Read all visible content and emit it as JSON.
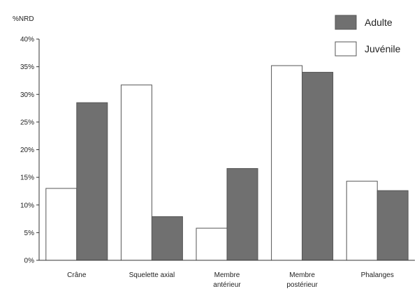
{
  "chart_data": {
    "type": "bar",
    "ylabel": "%NRD",
    "ylim": [
      0,
      40
    ],
    "yticks": [
      "0%",
      "5%",
      "10%",
      "15%",
      "20%",
      "25%",
      "30%",
      "35%",
      "40%"
    ],
    "categories": [
      [
        "Crâne"
      ],
      [
        "Squelette axial"
      ],
      [
        "Membre",
        "antérieur"
      ],
      [
        "Membre",
        "postérieur"
      ],
      [
        "Phalanges"
      ]
    ],
    "series": [
      {
        "name": "Juvénile",
        "color": "#ffffff",
        "values": [
          13,
          31.7,
          5.8,
          35.2,
          14.3
        ]
      },
      {
        "name": "Adulte",
        "color": "#707070",
        "values": [
          28.5,
          7.9,
          16.6,
          34.0,
          12.6
        ]
      }
    ],
    "legend": {
      "position": "top-right",
      "order": [
        "Adulte",
        "Juvénile"
      ]
    },
    "grid": false
  }
}
